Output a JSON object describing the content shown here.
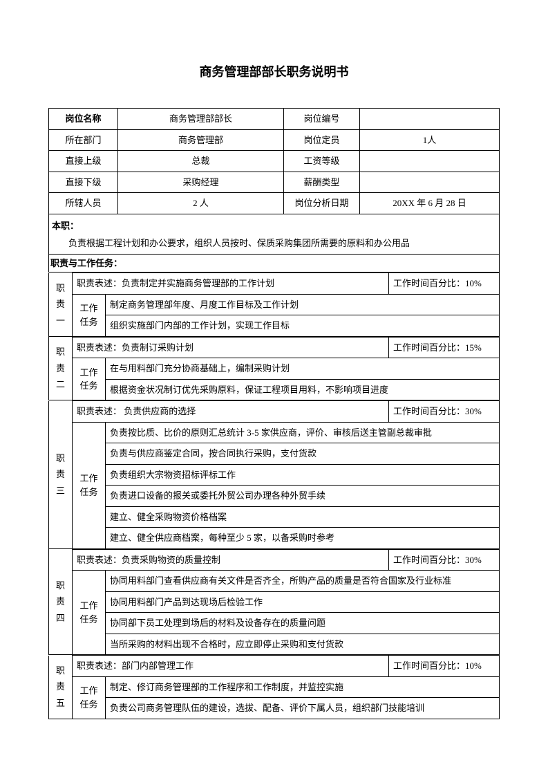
{
  "title": "商务管理部部长职务说明书",
  "header": {
    "labels": {
      "post_name": "岗位名称",
      "post_no": "岗位编号",
      "dept": "所在部门",
      "headcount": "岗位定员",
      "superior": "直接上级",
      "salary_level": "工资等级",
      "subordinate": "直接下级",
      "pay_type": "薪酬类型",
      "staff": "所辖人员",
      "analysis_date": "岗位分析日期"
    },
    "values": {
      "post_name": "商务管理部部长",
      "post_no": "",
      "dept": "商务管理部",
      "headcount": "1人",
      "superior": "总裁",
      "salary_level": "",
      "subordinate": "采购经理",
      "pay_type": "",
      "staff": "2 人",
      "analysis_date": "20XX 年 6 月 28 日"
    }
  },
  "main_duty": {
    "label": "本职：",
    "text": "负责根据工程计划和办公要求，组织人员按时、保质采购集团所需要的原料和办公用品"
  },
  "duties_label": "职责与工作任务：",
  "desc_label": "职责表述：",
  "task_label": "工作\n任务",
  "time_label_prefix": "工作时间百分比：",
  "duties": [
    {
      "name": "职\n责\n一",
      "desc": "负责制定并实施商务管理部的工作计划",
      "time": "10%",
      "tasks": [
        "制定商务管理部年度、月度工作目标及工作计划",
        "组织实施部门内部的工作计划，实现工作目标"
      ]
    },
    {
      "name": "职\n责\n二",
      "desc": "负责制订采购计划",
      "time": "15%",
      "tasks": [
        "在与用料部门充分协商基础上，编制采购计划",
        "根据资金状况制订优先采购原料，保证工程项目用料，不影响项目进度"
      ]
    },
    {
      "name": "职\n责\n三",
      "desc": " 负责供应商的选择",
      "time": "30%",
      "tasks": [
        "负责按比质、比价的原则汇总统计 3-5 家供应商，评价、审核后送主管副总裁审批",
        "负责与供应商鉴定合同，按合同执行采购，支付货款",
        "负责组织大宗物资招标评标工作",
        "负责进口设备的报关或委托外贸公司办理各种外贸手续",
        "建立、健全采购物资价格档案",
        "建立、健全供应商档案，每种至少 5 家，以备采购时参考"
      ]
    },
    {
      "name": "职\n责\n四",
      "desc": "负责采购物资的质量控制",
      "time": "30%",
      "tasks": [
        "协同用料部门查看供应商有关文件是否齐全，所购产品的质量是否符合国家及行业标准",
        "协同用料部门产品到达现场后检验工作",
        "协同部下员工处理到场后的材料及设备存在的质量问题",
        "当所采购的材料出现不合格时，应立即停止采购和支付货款"
      ]
    },
    {
      "name": "职\n责\n五",
      "desc": "部门内部管理工作",
      "time": "10%",
      "tasks": [
        "制定、修订商务管理部的工作程序和工作制度，并监控实施",
        "负责公司商务管理队伍的建设，选拔、配备、评价下属人员，组织部门技能培训"
      ]
    }
  ]
}
